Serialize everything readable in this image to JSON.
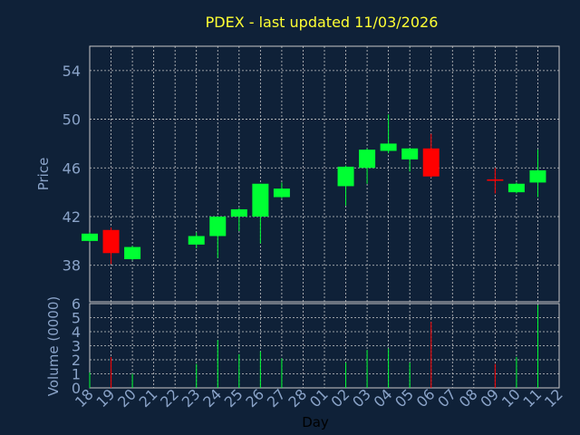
{
  "chart_data": {
    "type": "candlestick",
    "title": "PDEX - last updated 11/03/2026",
    "xlabel": "Day",
    "price_panel": {
      "ylabel": "Price",
      "ylim": [
        35,
        56
      ],
      "yticks": [
        "38",
        "42",
        "46",
        "50",
        "54"
      ],
      "ytick_values": [
        38,
        42,
        46,
        50,
        54
      ]
    },
    "volume_panel": {
      "ylabel": "Volume (0000)",
      "ylim": [
        0,
        6
      ],
      "yticks": [
        "0",
        "1",
        "2",
        "3",
        "4",
        "5",
        "6"
      ],
      "ytick_values": [
        0,
        1,
        2,
        3,
        4,
        5,
        6
      ]
    },
    "x_ticks": [
      "18",
      "19",
      "20",
      "21",
      "22",
      "23",
      "24",
      "25",
      "26",
      "27",
      "28",
      "01",
      "02",
      "03",
      "04",
      "05",
      "06",
      "07",
      "08",
      "09",
      "10",
      "11",
      "12"
    ],
    "grid": true,
    "candles": [
      {
        "day": "18",
        "open": 40.0,
        "high": 40.7,
        "low": 39.9,
        "close": 40.6,
        "volume": 1.1
      },
      {
        "day": "19",
        "open": 40.9,
        "high": 41.1,
        "low": 38.1,
        "close": 39.0,
        "volume": 2.2
      },
      {
        "day": "20",
        "open": 38.5,
        "high": 39.6,
        "low": 38.4,
        "close": 39.5,
        "volume": 1.0
      },
      {
        "day": "23",
        "open": 39.7,
        "high": 40.7,
        "low": 39.4,
        "close": 40.4,
        "volume": 1.7
      },
      {
        "day": "24",
        "open": 40.4,
        "high": 42.0,
        "low": 38.6,
        "close": 42.0,
        "volume": 3.4
      },
      {
        "day": "25",
        "open": 42.0,
        "high": 42.7,
        "low": 40.8,
        "close": 42.6,
        "volume": 2.4
      },
      {
        "day": "26",
        "open": 42.0,
        "high": 44.7,
        "low": 39.8,
        "close": 44.7,
        "volume": 2.6
      },
      {
        "day": "27",
        "open": 43.6,
        "high": 44.8,
        "low": 43.5,
        "close": 44.3,
        "volume": 2.1
      },
      {
        "day": "02",
        "open": 44.5,
        "high": 46.2,
        "low": 42.9,
        "close": 46.1,
        "volume": 1.8
      },
      {
        "day": "03",
        "open": 46.0,
        "high": 47.6,
        "low": 44.7,
        "close": 47.5,
        "volume": 2.7
      },
      {
        "day": "04",
        "open": 47.4,
        "high": 50.4,
        "low": 47.2,
        "close": 48.0,
        "volume": 2.8
      },
      {
        "day": "05",
        "open": 46.7,
        "high": 47.6,
        "low": 45.7,
        "close": 47.6,
        "volume": 1.8
      },
      {
        "day": "06",
        "open": 47.6,
        "high": 48.8,
        "low": 45.2,
        "close": 45.3,
        "volume": 4.7
      },
      {
        "day": "09",
        "open": 45.0,
        "high": 46.0,
        "low": 43.9,
        "close": 45.0,
        "volume": 1.7
      },
      {
        "day": "10",
        "open": 44.0,
        "high": 44.8,
        "low": 43.9,
        "close": 44.7,
        "volume": 2.2
      },
      {
        "day": "11",
        "open": 44.8,
        "high": 47.5,
        "low": 43.6,
        "close": 45.8,
        "volume": 5.9
      }
    ]
  },
  "colors": {
    "background": "#0f2138",
    "up": "#00ff33",
    "down": "#ff0000",
    "neutral": "#ff0000",
    "grid": "#c8c8c8",
    "axis_text": "#8aa3c8",
    "title": "#ffff33",
    "xlabel": "#000000"
  }
}
